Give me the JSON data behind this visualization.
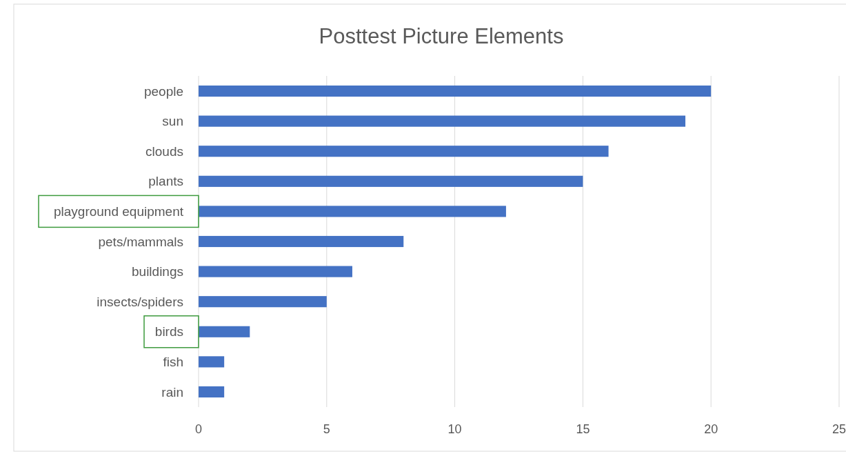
{
  "chart_data": {
    "type": "bar",
    "orientation": "horizontal",
    "title": "Posttest Picture Elements",
    "categories": [
      "people",
      "sun",
      "clouds",
      "plants",
      "playground equipment",
      "pets/mammals",
      "buildings",
      "insects/spiders",
      "birds",
      "fish",
      "rain"
    ],
    "values": [
      20,
      19,
      16,
      15,
      12,
      8,
      6,
      5,
      2,
      1,
      1
    ],
    "color": "#4472c4",
    "xlim": [
      0,
      25
    ],
    "xticks": [
      0,
      5,
      10,
      15,
      20,
      25
    ],
    "grid": "x"
  }
}
